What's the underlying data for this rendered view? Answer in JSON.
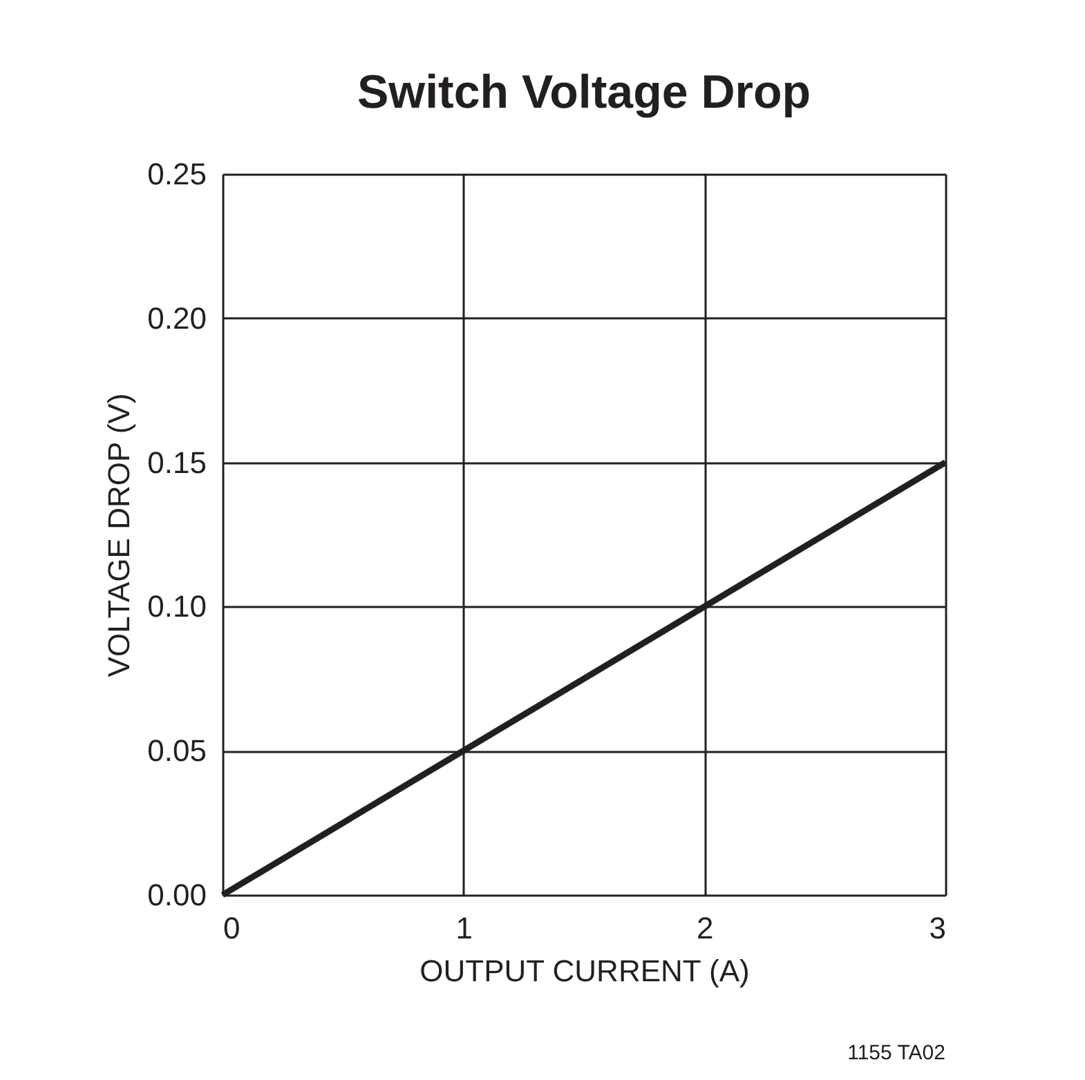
{
  "chart_data": {
    "type": "line",
    "title": "Switch Voltage Drop",
    "xlabel": "OUTPUT CURRENT (A)",
    "ylabel": "VOLTAGE DROP (V)",
    "x": [
      0,
      1,
      2,
      3
    ],
    "series": [
      {
        "color": "#231f20",
        "values": [
          0,
          0.05,
          0.1,
          0.15
        ]
      }
    ],
    "xlim": [
      0,
      3
    ],
    "xticks": [
      0,
      1,
      2,
      3
    ],
    "ylim": [
      0,
      0.25
    ],
    "yticks": [
      {
        "value": 0,
        "label": "0.00"
      },
      {
        "value": 0.05,
        "label": "0.05"
      },
      {
        "value": 0.1,
        "label": "0.10"
      },
      {
        "value": 0.15,
        "label": "0.15"
      },
      {
        "value": 0.2,
        "label": "0.20"
      },
      {
        "value": 0.25,
        "label": "0.25"
      }
    ],
    "grid": true,
    "marker": "none",
    "line_style": "solid",
    "legend": false,
    "annotations": [
      "1155 TA02"
    ]
  }
}
